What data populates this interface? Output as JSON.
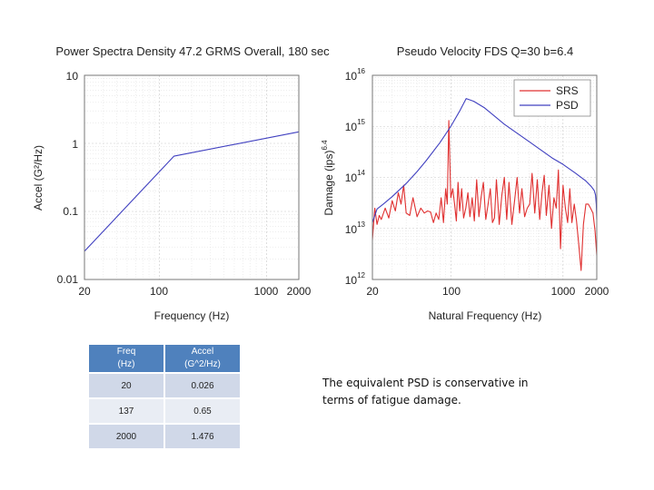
{
  "chart_data": [
    {
      "type": "line",
      "title": "Power Spectra Density 47.2 GRMS Overall, 180 sec",
      "xlabel": "Frequency (Hz)",
      "ylabel": "Accel (G²/Hz)",
      "xscale": "log",
      "yscale": "log",
      "xlim": [
        20,
        2000
      ],
      "ylim": [
        0.01,
        10
      ],
      "xticks": [
        "20",
        "100",
        "1000",
        "2000"
      ],
      "yticks": [
        "0.01",
        "0.1",
        "1",
        "10"
      ],
      "grid": true,
      "series": [
        {
          "color": "#4040c0",
          "x": [
            20,
            137,
            2000
          ],
          "y": [
            0.026,
            0.65,
            1.476
          ]
        }
      ]
    },
    {
      "type": "line",
      "title": "Pseudo Velocity FDS Q=30 b=6.4",
      "xlabel": "Natural Frequency (Hz)",
      "ylabel": "Damage (ips)",
      "ylabel_exponent": "6.4",
      "xscale": "log",
      "yscale": "log",
      "xlim": [
        20,
        2000
      ],
      "ylim": [
        1000000000000.0,
        1e+16
      ],
      "xticks": [
        "20",
        "100",
        "1000",
        "2000"
      ],
      "yticks": [
        {
          "base": "10",
          "exp": "12"
        },
        {
          "base": "10",
          "exp": "13"
        },
        {
          "base": "10",
          "exp": "14"
        },
        {
          "base": "10",
          "exp": "15"
        },
        {
          "base": "10",
          "exp": "16"
        }
      ],
      "grid": true,
      "legend_position": "top-right",
      "series": [
        {
          "name": "SRS",
          "color": "#e03030",
          "x": [
            20,
            21,
            22,
            23,
            24,
            26,
            28,
            30,
            32,
            34,
            36,
            38,
            40,
            43,
            46,
            50,
            54,
            58,
            62,
            66,
            70,
            74,
            78,
            82,
            86,
            90,
            93,
            96,
            98,
            100,
            104,
            108,
            112,
            116,
            120,
            125,
            130,
            136,
            142,
            148,
            155,
            162,
            170,
            178,
            186,
            195,
            205,
            215,
            225,
            235,
            245,
            255,
            270,
            285,
            300,
            315,
            330,
            350,
            370,
            390,
            410,
            430,
            455,
            480,
            505,
            530,
            560,
            590,
            620,
            650,
            680,
            710,
            750,
            790,
            830,
            870,
            910,
            950,
            1000,
            1050,
            1100,
            1150,
            1200,
            1260,
            1320,
            1380,
            1450,
            1520,
            1600,
            1680,
            1760,
            1850,
            1930,
            2000
          ],
          "y": [
            6000000000000.0,
            25000000000000.0,
            12000000000000.0,
            18000000000000.0,
            15000000000000.0,
            25000000000000.0,
            16000000000000.0,
            35000000000000.0,
            22000000000000.0,
            50000000000000.0,
            30000000000000.0,
            70000000000000.0,
            20000000000000.0,
            18000000000000.0,
            40000000000000.0,
            17000000000000.0,
            25000000000000.0,
            20000000000000.0,
            22000000000000.0,
            21000000000000.0,
            13000000000000.0,
            20000000000000.0,
            15000000000000.0,
            40000000000000.0,
            13000000000000.0,
            60000000000000.0,
            30000000000000.0,
            1300000000000000.0,
            200000000000000.0,
            40000000000000.0,
            60000000000000.0,
            30000000000000.0,
            14000000000000.0,
            80000000000000.0,
            22000000000000.0,
            60000000000000.0,
            16000000000000.0,
            25000000000000.0,
            50000000000000.0,
            17000000000000.0,
            40000000000000.0,
            14000000000000.0,
            90000000000000.0,
            17000000000000.0,
            40000000000000.0,
            80000000000000.0,
            15000000000000.0,
            30000000000000.0,
            60000000000000.0,
            13000000000000.0,
            16000000000000.0,
            90000000000000.0,
            12000000000000.0,
            45000000000000.0,
            100000000000000.0,
            15000000000000.0,
            80000000000000.0,
            12000000000000.0,
            35000000000000.0,
            100000000000000.0,
            20000000000000.0,
            60000000000000.0,
            17000000000000.0,
            25000000000000.0,
            30000000000000.0,
            120000000000000.0,
            20000000000000.0,
            90000000000000.0,
            15000000000000.0,
            50000000000000.0,
            110000000000000.0,
            18000000000000.0,
            70000000000000.0,
            10000000000000.0,
            40000000000000.0,
            25000000000000.0,
            140000000000000.0,
            4000000000000.0,
            70000000000000.0,
            25000000000000.0,
            13000000000000.0,
            60000000000000.0,
            13000000000000.0,
            30000000000000.0,
            14000000000000.0,
            5000000000000.0,
            1500000000000.0,
            12000000000000.0,
            30000000000000.0,
            30000000000000.0,
            25000000000000.0,
            20000000000000.0,
            9000000000000.0,
            3000000000000.0
          ]
        },
        {
          "name": "PSD",
          "color": "#4040c0",
          "x": [
            20,
            22,
            25,
            30,
            40,
            50,
            60,
            80,
            100,
            120,
            137,
            160,
            200,
            300,
            500,
            800,
            1000,
            1300,
            1600,
            1800,
            1900,
            1950,
            1980,
            2000
          ],
          "y": [
            13000000000000.0,
            24000000000000.0,
            30000000000000.0,
            42000000000000.0,
            76000000000000.0,
            130000000000000.0,
            210000000000000.0,
            480000000000000.0,
            1000000000000000.0,
            2000000000000000.0,
            3500000000000000.0,
            3100000000000000.0,
            2300000000000000.0,
            1100000000000000.0,
            500000000000000.0,
            240000000000000.0,
            180000000000000.0,
            120000000000000.0,
            85000000000000.0,
            65000000000000.0,
            55000000000000.0,
            45000000000000.0,
            30000000000000.0,
            15000000000000.0
          ]
        }
      ]
    }
  ],
  "table": {
    "headers": [
      [
        "Freq",
        "(Hz)"
      ],
      [
        "Accel",
        "(G^2/Hz)"
      ]
    ],
    "rows": [
      [
        "20",
        "0.026"
      ],
      [
        "137",
        "0.65"
      ],
      [
        "2000",
        "1.476"
      ]
    ]
  },
  "note": "The equivalent PSD is conservative in terms of fatigue damage."
}
